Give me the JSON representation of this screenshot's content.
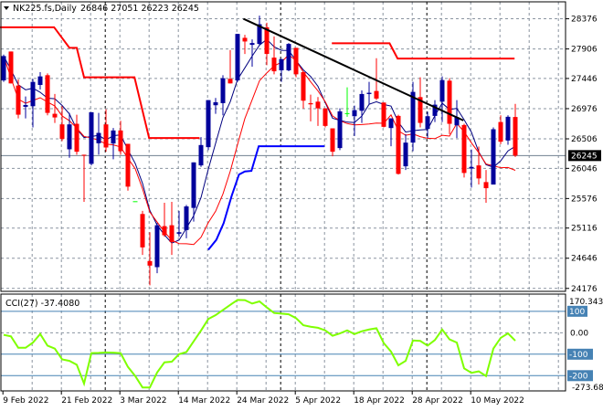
{
  "header": {
    "symbol": "NK225.fs,Daily",
    "ohlc_text": "26846 27051 26223 26245",
    "menu_icon": "triangle-down-icon"
  },
  "colors": {
    "bull": "#00009b",
    "bear": "#ff0000",
    "doji": "#00ff00",
    "ma_fast": "#00007f",
    "ma_slow": "#ff0000",
    "stop_upper": "#ff0000",
    "stop_lower": "#0000ff",
    "trendline": "#000000",
    "cci": "#7fff00",
    "cci_levels": "#4682b4",
    "grid": "#8a94a0",
    "separator": "#000000"
  },
  "chart_data": [
    {
      "type": "candlestick",
      "title": "NK225.fs,Daily",
      "ylim": [
        24130,
        28640
      ],
      "grid": true,
      "last_price": "26245",
      "y_ticks": [
        "28376",
        "27906",
        "27446",
        "26976",
        "26506",
        "26046",
        "25576",
        "25116",
        "24646",
        "24176"
      ],
      "x_tick_labels": [
        {
          "bar": 0,
          "label": "9 Feb 2022"
        },
        {
          "bar": 8,
          "label": "21 Feb 2022"
        },
        {
          "bar": 16,
          "label": "3 Mar 2022"
        },
        {
          "bar": 24,
          "label": "14 Mar 2022"
        },
        {
          "bar": 32,
          "label": "24 Mar 2022"
        },
        {
          "bar": 40,
          "label": "5 Apr 2022"
        },
        {
          "bar": 48,
          "label": "18 Apr 2022"
        },
        {
          "bar": 56,
          "label": "28 Apr 2022"
        },
        {
          "bar": 64,
          "label": "10 May 2022"
        }
      ],
      "separators": [
        14,
        38,
        58
      ],
      "ohlc": [
        [
          27416,
          27818,
          27393,
          27795
        ],
        [
          27866,
          27866,
          27369,
          27369
        ],
        [
          27336,
          27431,
          26825,
          26882
        ],
        [
          27005,
          27166,
          26825,
          27033
        ],
        [
          27014,
          27440,
          26683,
          27393
        ],
        [
          27345,
          27544,
          27275,
          27478
        ],
        [
          27497,
          27525,
          26872,
          26910
        ],
        [
          26896,
          27204,
          26754,
          26839
        ],
        [
          26731,
          27014,
          26470,
          26504
        ],
        [
          26343,
          26910,
          26210,
          26731
        ],
        [
          26740,
          26882,
          26258,
          26305
        ],
        [
          26258,
          26258,
          25524,
          26248
        ],
        [
          26116,
          26920,
          26092,
          26920
        ],
        [
          26437,
          26910,
          26258,
          26598
        ],
        [
          26731,
          26967,
          26305,
          26371
        ],
        [
          26433,
          26674,
          26187,
          26636
        ],
        [
          26636,
          26787,
          26258,
          26314
        ],
        [
          26428,
          26428,
          25699,
          25761
        ],
        [
          25534,
          25534,
          25534,
          25534
        ],
        [
          25335,
          25383,
          24697,
          24815
        ],
        [
          24602,
          25051,
          24224,
          24531
        ],
        [
          24507,
          25193,
          24413,
          25160
        ],
        [
          25146,
          25510,
          24980,
          25004
        ],
        [
          25160,
          25524,
          24697,
          24900
        ],
        [
          25028,
          25383,
          24980,
          25051
        ],
        [
          25085,
          25477,
          24957,
          25453
        ],
        [
          25430,
          26139,
          25217,
          26139
        ],
        [
          26092,
          26532,
          26068,
          26409
        ],
        [
          26376,
          27109,
          26329,
          27109
        ],
        [
          27029,
          27142,
          26896,
          27076
        ],
        [
          27062,
          27497,
          26872,
          27450
        ],
        [
          27440,
          27889,
          27369,
          27369
        ],
        [
          27416,
          28140,
          27393,
          28140
        ],
        [
          28079,
          28126,
          27828,
          28022
        ],
        [
          27970,
          28055,
          27629,
          27998
        ],
        [
          27984,
          28424,
          27960,
          28291
        ],
        [
          28244,
          28315,
          27653,
          27828
        ],
        [
          27771,
          28102,
          27511,
          27558
        ],
        [
          27573,
          27748,
          27393,
          27748
        ],
        [
          27573,
          27998,
          27558,
          27984
        ],
        [
          27923,
          27923,
          27464,
          27511
        ],
        [
          27544,
          27558,
          26977,
          27100
        ],
        [
          27062,
          27194,
          26778,
          27043
        ],
        [
          27085,
          27156,
          26707,
          26981
        ],
        [
          26981,
          26981,
          26683,
          26707
        ],
        [
          26669,
          26669,
          26234,
          26305
        ],
        [
          26362,
          26981,
          26329,
          26934
        ],
        [
          26906,
          27308,
          26849,
          26906
        ],
        [
          26858,
          27024,
          26551,
          26953
        ],
        [
          26943,
          27260,
          26754,
          27204
        ],
        [
          27204,
          27393,
          27038,
          27223
        ],
        [
          27251,
          27762,
          27109,
          27133
        ],
        [
          27071,
          27071,
          26683,
          26693
        ],
        [
          26674,
          26825,
          26390,
          26825
        ],
        [
          26863,
          26882,
          25950,
          25960
        ],
        [
          26078,
          26579,
          26021,
          26447
        ],
        [
          26447,
          27393,
          26314,
          27237
        ],
        [
          27156,
          27464,
          26683,
          26754
        ],
        [
          26660,
          26929,
          26518,
          26858
        ],
        [
          26863,
          27109,
          26768,
          27038
        ],
        [
          27085,
          27478,
          26768,
          27421
        ],
        [
          27412,
          27450,
          26579,
          26740
        ],
        [
          26716,
          27109,
          26518,
          26844
        ],
        [
          26721,
          26740,
          25903,
          25974
        ],
        [
          26045,
          26338,
          25747,
          26068
        ],
        [
          26092,
          26385,
          25794,
          25889
        ],
        [
          25832,
          26021,
          25510,
          25737
        ],
        [
          25794,
          26683,
          25794,
          26655
        ],
        [
          26768,
          26872,
          26423,
          26461
        ],
        [
          26480,
          26872,
          26414,
          26849
        ],
        [
          26846,
          27051,
          26223,
          26245
        ]
      ],
      "stop_upper": [
        [
          [
            -1,
            28244
          ],
          [
            6.9,
            28244
          ],
          [
            9,
            27923
          ],
          [
            10,
            27923
          ],
          [
            11,
            27464
          ],
          [
            17.9,
            27464
          ],
          [
            19.9,
            26518
          ],
          [
            26.8,
            26518
          ]
        ],
        [
          [
            44.9,
            27994
          ],
          [
            52.8,
            27994
          ],
          [
            53.9,
            27757
          ],
          [
            69.9,
            27757
          ]
        ]
      ],
      "stop_lower": [
        [
          [
            28,
            24777
          ],
          [
            29.1,
            24933
          ],
          [
            30.1,
            25193
          ],
          [
            31.2,
            25619
          ],
          [
            32.2,
            25950
          ],
          [
            33,
            25997
          ],
          [
            33.9,
            26007
          ],
          [
            34.9,
            26390
          ],
          [
            43.9,
            26390
          ]
        ]
      ],
      "trendline": [
        [
          32.8,
          28376
        ],
        [
          62.9,
          26792
        ]
      ]
    },
    {
      "type": "line",
      "title": "CCI(27) -37.4080",
      "ylim": [
        -273.6808,
        170.3435
      ],
      "top_label": "170.3435",
      "bottom_label": "-273.680",
      "levels": [
        {
          "value": 100,
          "label": "100"
        },
        {
          "value": 0,
          "label": "0.00"
        },
        {
          "value": -100,
          "label": "-100"
        },
        {
          "value": -200,
          "label": "-200"
        }
      ],
      "values": [
        -10,
        -17,
        -70,
        -70,
        -46,
        -6,
        -60,
        -74,
        -124,
        -131,
        -149,
        -237,
        -95,
        -94,
        -92,
        -93,
        -95,
        -159,
        -202,
        -255,
        -255,
        -185,
        -138,
        -135,
        -100,
        -90,
        -40,
        10,
        64,
        82,
        106,
        130,
        153,
        152,
        136,
        146,
        118,
        92,
        89,
        86,
        68,
        35,
        28,
        23,
        11,
        -14,
        -3,
        11,
        -6,
        7,
        15,
        21,
        -48,
        -88,
        -152,
        -131,
        -36,
        -38,
        -60,
        -34,
        15,
        -31,
        -46,
        -166,
        -187,
        -180,
        -202,
        -74,
        -24,
        -3,
        -37.408
      ]
    }
  ]
}
